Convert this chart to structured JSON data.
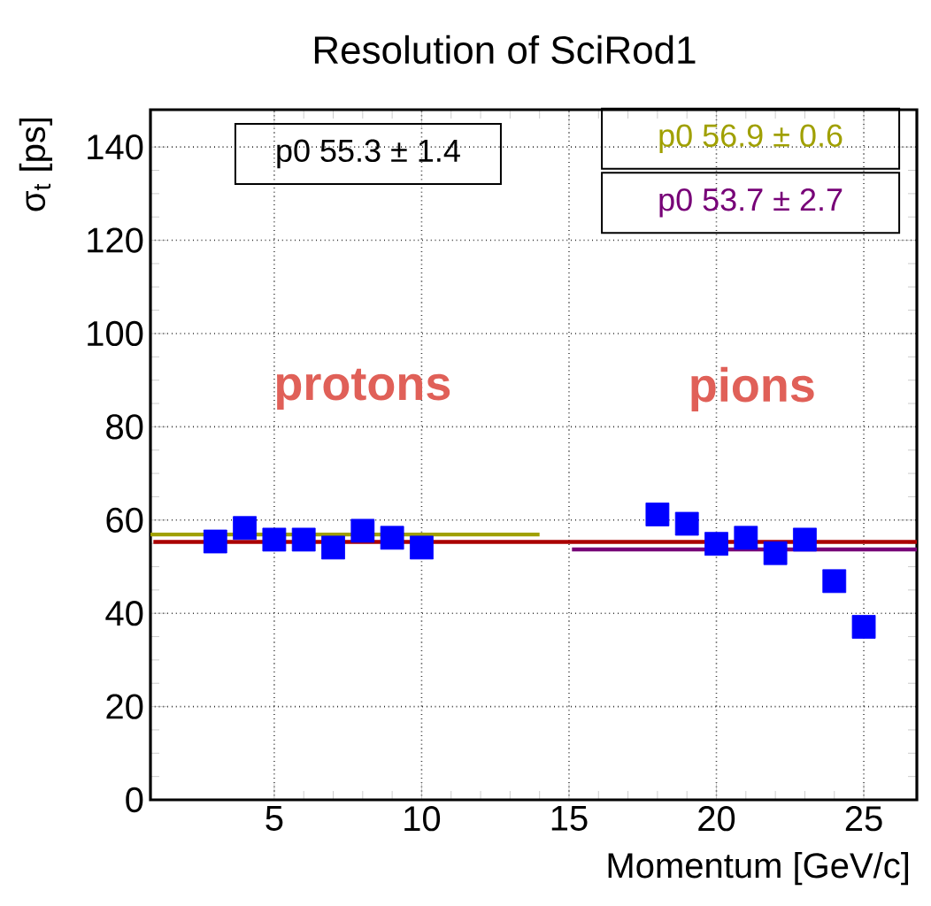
{
  "chart_data": {
    "type": "scatter",
    "title": "Resolution of SciRod1",
    "xlabel": "Momentum   [GeV/c]",
    "ylabel": "σ$_{t}$ [ps]",
    "xlim": [
      0.8,
      26.8
    ],
    "xticks": [
      5,
      10,
      15,
      20,
      25
    ],
    "ylim": [
      0,
      148
    ],
    "yticks": [
      0,
      20,
      40,
      60,
      80,
      100,
      120,
      140
    ],
    "grid": true,
    "series": [
      {
        "marker": "square",
        "color": "#0000ff",
        "x": [
          3,
          4,
          5,
          6,
          7,
          8,
          9,
          10,
          18,
          19,
          20,
          21,
          22,
          23,
          24,
          25
        ],
        "values": [
          55.4,
          58.3,
          55.8,
          55.8,
          54.1,
          57.7,
          56.2,
          54.1,
          61.2,
          59.2,
          54.9,
          56.2,
          52.9,
          55.8,
          46.9,
          37.1
        ]
      },
      {
        "type": "line",
        "color": "#aa0000",
        "x": [
          0.9,
          26.8
        ],
        "values": [
          55.3,
          55.3
        ]
      },
      {
        "type": "line",
        "color": "#a0a000",
        "x": [
          0.8,
          14
        ],
        "values": [
          56.9,
          56.9
        ]
      },
      {
        "type": "line",
        "color": "#770077",
        "x": [
          15.1,
          26.8
        ],
        "values": [
          53.7,
          53.7
        ]
      }
    ],
    "annotations": [
      "protons",
      "pions",
      "p0  55.3 ±   1.4",
      "p0     56.9 ± 0.6",
      "p0     53.7 ± 2.7"
    ]
  }
}
